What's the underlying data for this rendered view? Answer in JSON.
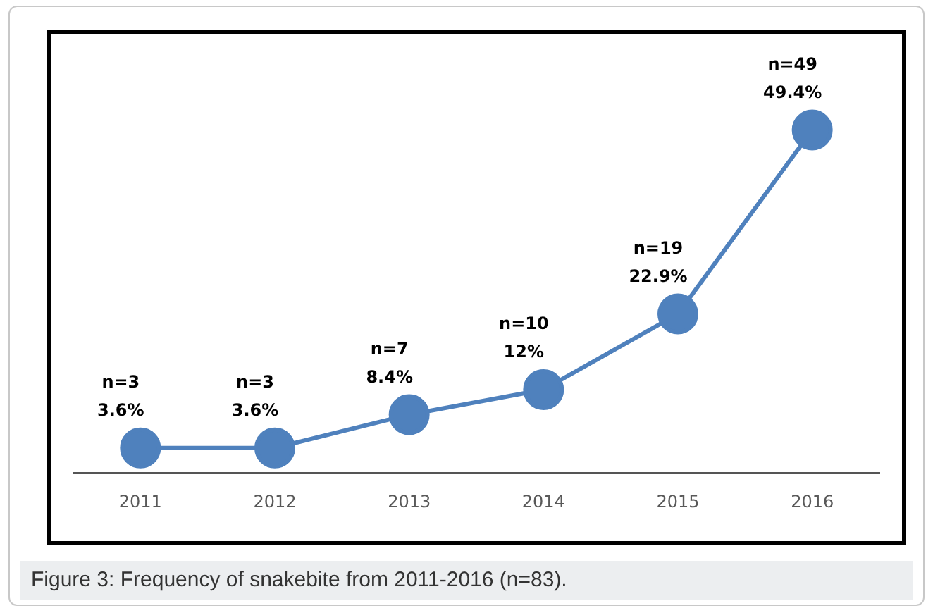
{
  "chart_data": {
    "type": "line",
    "title": "Figure 3: Frequency of snakebite from 2011-2016 (n=83).",
    "categories": [
      "2011",
      "2012",
      "2013",
      "2014",
      "2015",
      "2016"
    ],
    "series": [
      {
        "color": "#4f81bd",
        "values": [
          3.6,
          3.6,
          8.4,
          12,
          22.9,
          49.4
        ],
        "value_labels": [
          "n=3\n3.6%",
          "n=3\n3.6%",
          "n=7\n8.4%",
          "n=10\n12%",
          "n=19\n22.9%",
          "n=49\n49.4%"
        ]
      }
    ],
    "tick_labels": "x",
    "grid": false,
    "legend": false,
    "marker": "circle",
    "line_style": "solid"
  }
}
